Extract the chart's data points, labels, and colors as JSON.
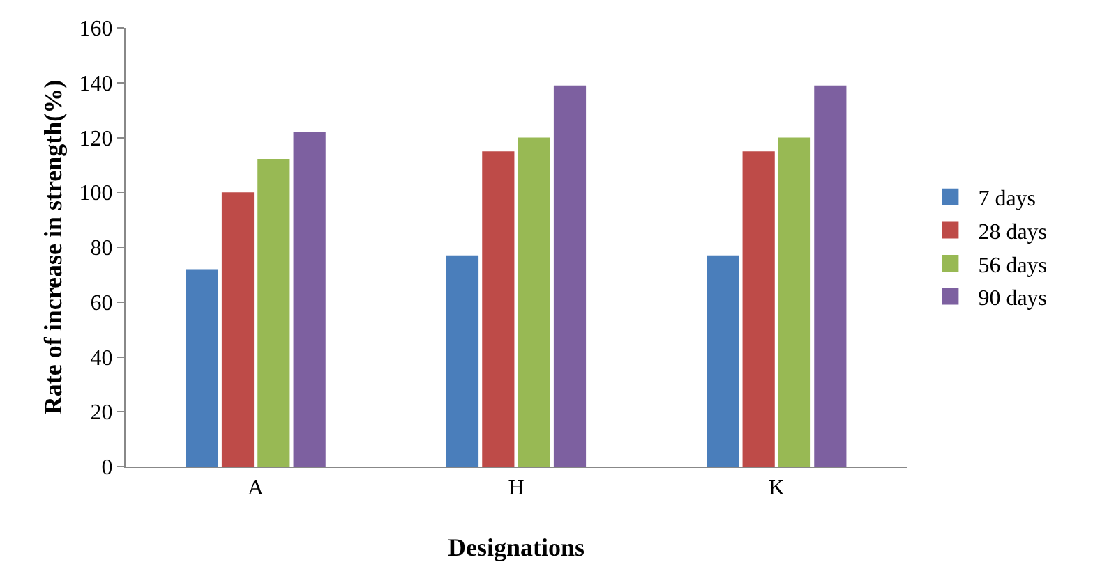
{
  "chart_data": {
    "type": "bar",
    "xlabel": "Designations",
    "ylabel": "Rate of increase in strength(%)",
    "categories": [
      "A",
      "H",
      "K"
    ],
    "series": [
      {
        "name": "7 days",
        "color": "#4a7ebb",
        "values": [
          72,
          77,
          77
        ]
      },
      {
        "name": "28 days",
        "color": "#be4b48",
        "values": [
          100,
          115,
          115
        ]
      },
      {
        "name": "56 days",
        "color": "#98b954",
        "values": [
          112,
          120,
          120
        ]
      },
      {
        "name": "90 days",
        "color": "#7d60a0",
        "values": [
          122,
          139,
          139
        ]
      }
    ],
    "ylim": [
      0,
      160
    ],
    "yticks": [
      0,
      20,
      40,
      60,
      80,
      100,
      120,
      140,
      160
    ],
    "grid": false,
    "legend": "right"
  }
}
